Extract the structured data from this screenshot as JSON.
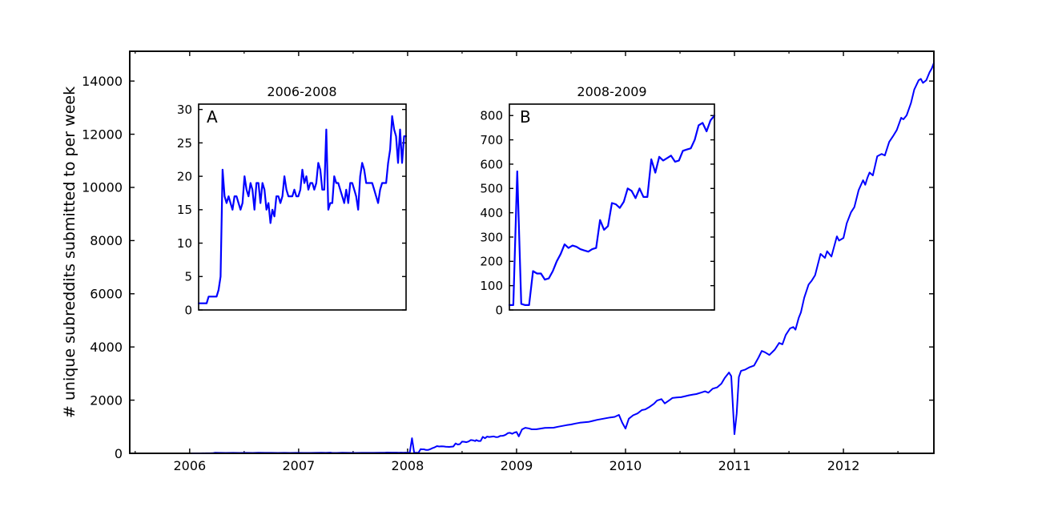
{
  "figure": {
    "background": "#ffffff",
    "axes_color": "#000000",
    "line_color": "#0000ff"
  },
  "chart_data": [
    {
      "id": "main",
      "type": "line",
      "title": "",
      "xlabel": "",
      "ylabel": "# unique subreddits submitted to per week",
      "xlim": [
        2005.45,
        2012.83
      ],
      "ylim": [
        0,
        15120
      ],
      "grid": false,
      "legend": null,
      "xticks": [
        {
          "v": 2006,
          "label": "2006"
        },
        {
          "v": 2007,
          "label": "2007"
        },
        {
          "v": 2008,
          "label": "2008"
        },
        {
          "v": 2009,
          "label": "2009"
        },
        {
          "v": 2010,
          "label": "2010"
        },
        {
          "v": 2011,
          "label": "2011"
        },
        {
          "v": 2012,
          "label": "2012"
        }
      ],
      "xminor": [
        2005.5,
        2006.5,
        2007.5,
        2008.5,
        2009.5,
        2010.5,
        2011.5,
        2012.5
      ],
      "yticks": [
        {
          "v": 0,
          "label": "0"
        },
        {
          "v": 2000,
          "label": "2000"
        },
        {
          "v": 4000,
          "label": "4000"
        },
        {
          "v": 6000,
          "label": "6000"
        },
        {
          "v": 8000,
          "label": "8000"
        },
        {
          "v": 10000,
          "label": "10000"
        },
        {
          "v": 12000,
          "label": "12000"
        },
        {
          "v": 14000,
          "label": "14000"
        }
      ],
      "series": [
        [
          2006.02,
          1
        ],
        [
          2006.1,
          1
        ],
        [
          2006.15,
          2
        ],
        [
          2006.19,
          2
        ],
        [
          2006.21,
          5
        ],
        [
          2006.23,
          21
        ],
        [
          2006.27,
          17
        ],
        [
          2006.33,
          16
        ],
        [
          2006.4,
          17
        ],
        [
          2006.46,
          15
        ],
        [
          2006.52,
          17
        ],
        [
          2006.58,
          16
        ],
        [
          2006.63,
          20
        ],
        [
          2006.69,
          18
        ],
        [
          2006.75,
          19
        ],
        [
          2006.81,
          15
        ],
        [
          2006.87,
          19
        ],
        [
          2006.92,
          16
        ],
        [
          2006.98,
          19
        ],
        [
          2007.04,
          15
        ],
        [
          2007.1,
          14
        ],
        [
          2007.15,
          17
        ],
        [
          2007.21,
          20
        ],
        [
          2007.25,
          19
        ],
        [
          2007.29,
          27
        ],
        [
          2007.31,
          15
        ],
        [
          2007.35,
          16
        ],
        [
          2007.4,
          20
        ],
        [
          2007.46,
          18
        ],
        [
          2007.52,
          16
        ],
        [
          2007.58,
          18
        ],
        [
          2007.63,
          19
        ],
        [
          2007.69,
          18
        ],
        [
          2007.75,
          22
        ],
        [
          2007.79,
          24
        ],
        [
          2007.81,
          29
        ],
        [
          2007.85,
          27
        ],
        [
          2007.88,
          28
        ],
        [
          2007.9,
          26
        ],
        [
          2007.92,
          24
        ],
        [
          2007.94,
          26
        ],
        [
          2007.96,
          22
        ],
        [
          2007.98,
          26
        ],
        [
          2008.0,
          20
        ],
        [
          2008.02,
          20
        ],
        [
          2008.04,
          570
        ],
        [
          2008.06,
          25
        ],
        [
          2008.08,
          20
        ],
        [
          2008.1,
          20
        ],
        [
          2008.12,
          160
        ],
        [
          2008.13,
          150
        ],
        [
          2008.15,
          150
        ],
        [
          2008.17,
          125
        ],
        [
          2008.19,
          130
        ],
        [
          2008.21,
          160
        ],
        [
          2008.23,
          200
        ],
        [
          2008.25,
          230
        ],
        [
          2008.27,
          270
        ],
        [
          2008.29,
          255
        ],
        [
          2008.31,
          265
        ],
        [
          2008.33,
          260
        ],
        [
          2008.35,
          250
        ],
        [
          2008.37,
          245
        ],
        [
          2008.38,
          240
        ],
        [
          2008.4,
          250
        ],
        [
          2008.42,
          255
        ],
        [
          2008.44,
          370
        ],
        [
          2008.46,
          330
        ],
        [
          2008.48,
          345
        ],
        [
          2008.5,
          440
        ],
        [
          2008.52,
          435
        ],
        [
          2008.54,
          420
        ],
        [
          2008.56,
          445
        ],
        [
          2008.58,
          500
        ],
        [
          2008.6,
          490
        ],
        [
          2008.62,
          460
        ],
        [
          2008.63,
          500
        ],
        [
          2008.65,
          465
        ],
        [
          2008.67,
          465
        ],
        [
          2008.69,
          620
        ],
        [
          2008.71,
          565
        ],
        [
          2008.73,
          630
        ],
        [
          2008.75,
          615
        ],
        [
          2008.77,
          625
        ],
        [
          2008.79,
          635
        ],
        [
          2008.81,
          610
        ],
        [
          2008.83,
          615
        ],
        [
          2008.85,
          655
        ],
        [
          2008.87,
          660
        ],
        [
          2008.88,
          665
        ],
        [
          2008.9,
          700
        ],
        [
          2008.92,
          760
        ],
        [
          2008.94,
          770
        ],
        [
          2008.96,
          735
        ],
        [
          2008.98,
          780
        ],
        [
          2009.0,
          800
        ],
        [
          2009.02,
          640
        ],
        [
          2009.05,
          900
        ],
        [
          2009.08,
          960
        ],
        [
          2009.11,
          940
        ],
        [
          2009.14,
          905
        ],
        [
          2009.18,
          905
        ],
        [
          2009.22,
          930
        ],
        [
          2009.26,
          955
        ],
        [
          2009.3,
          960
        ],
        [
          2009.34,
          965
        ],
        [
          2009.38,
          1000
        ],
        [
          2009.42,
          1030
        ],
        [
          2009.46,
          1060
        ],
        [
          2009.5,
          1085
        ],
        [
          2009.54,
          1120
        ],
        [
          2009.58,
          1150
        ],
        [
          2009.62,
          1165
        ],
        [
          2009.66,
          1180
        ],
        [
          2009.7,
          1220
        ],
        [
          2009.74,
          1260
        ],
        [
          2009.78,
          1290
        ],
        [
          2009.82,
          1320
        ],
        [
          2009.86,
          1350
        ],
        [
          2009.9,
          1370
        ],
        [
          2009.94,
          1445
        ],
        [
          2009.97,
          1150
        ],
        [
          2010.0,
          930
        ],
        [
          2010.03,
          1300
        ],
        [
          2010.07,
          1430
        ],
        [
          2010.11,
          1500
        ],
        [
          2010.15,
          1625
        ],
        [
          2010.18,
          1650
        ],
        [
          2010.22,
          1745
        ],
        [
          2010.26,
          1860
        ],
        [
          2010.29,
          1985
        ],
        [
          2010.33,
          2040
        ],
        [
          2010.36,
          1875
        ],
        [
          2010.4,
          1990
        ],
        [
          2010.43,
          2080
        ],
        [
          2010.47,
          2100
        ],
        [
          2010.51,
          2110
        ],
        [
          2010.55,
          2150
        ],
        [
          2010.58,
          2180
        ],
        [
          2010.62,
          2210
        ],
        [
          2010.65,
          2230
        ],
        [
          2010.69,
          2280
        ],
        [
          2010.73,
          2330
        ],
        [
          2010.76,
          2280
        ],
        [
          2010.8,
          2430
        ],
        [
          2010.84,
          2480
        ],
        [
          2010.88,
          2620
        ],
        [
          2010.91,
          2830
        ],
        [
          2010.95,
          3040
        ],
        [
          2010.97,
          2900
        ],
        [
          2011.0,
          720
        ],
        [
          2011.02,
          1500
        ],
        [
          2011.04,
          2870
        ],
        [
          2011.06,
          3100
        ],
        [
          2011.1,
          3150
        ],
        [
          2011.14,
          3240
        ],
        [
          2011.18,
          3300
        ],
        [
          2011.22,
          3600
        ],
        [
          2011.25,
          3850
        ],
        [
          2011.28,
          3800
        ],
        [
          2011.32,
          3700
        ],
        [
          2011.37,
          3900
        ],
        [
          2011.41,
          4150
        ],
        [
          2011.44,
          4100
        ],
        [
          2011.47,
          4450
        ],
        [
          2011.51,
          4700
        ],
        [
          2011.54,
          4750
        ],
        [
          2011.56,
          4650
        ],
        [
          2011.59,
          5100
        ],
        [
          2011.61,
          5300
        ],
        [
          2011.64,
          5850
        ],
        [
          2011.68,
          6350
        ],
        [
          2011.71,
          6500
        ],
        [
          2011.74,
          6700
        ],
        [
          2011.79,
          7500
        ],
        [
          2011.83,
          7350
        ],
        [
          2011.85,
          7600
        ],
        [
          2011.89,
          7400
        ],
        [
          2011.94,
          8160
        ],
        [
          2011.96,
          8000
        ],
        [
          2012.0,
          8100
        ],
        [
          2012.03,
          8650
        ],
        [
          2012.07,
          9070
        ],
        [
          2012.1,
          9260
        ],
        [
          2012.14,
          9900
        ],
        [
          2012.18,
          10270
        ],
        [
          2012.2,
          10100
        ],
        [
          2012.22,
          10360
        ],
        [
          2012.24,
          10560
        ],
        [
          2012.27,
          10450
        ],
        [
          2012.31,
          11170
        ],
        [
          2012.35,
          11260
        ],
        [
          2012.38,
          11200
        ],
        [
          2012.42,
          11710
        ],
        [
          2012.46,
          11960
        ],
        [
          2012.49,
          12160
        ],
        [
          2012.53,
          12620
        ],
        [
          2012.55,
          12560
        ],
        [
          2012.58,
          12710
        ],
        [
          2012.62,
          13170
        ],
        [
          2012.65,
          13680
        ],
        [
          2012.69,
          14030
        ],
        [
          2012.71,
          14080
        ],
        [
          2012.73,
          13930
        ],
        [
          2012.76,
          14030
        ],
        [
          2012.79,
          14330
        ],
        [
          2012.81,
          14470
        ],
        [
          2012.83,
          14680
        ]
      ]
    },
    {
      "id": "inset_a",
      "type": "line",
      "title": "2006-2008",
      "panel_label": "A",
      "xlim": [
        0,
        104
      ],
      "ylim": [
        0,
        30.8
      ],
      "x_unit": "week index (2006.0 to 2008.0)",
      "yticks": [
        {
          "v": 0,
          "label": "0"
        },
        {
          "v": 5,
          "label": "5"
        },
        {
          "v": 10,
          "label": "10"
        },
        {
          "v": 15,
          "label": "15"
        },
        {
          "v": 20,
          "label": "20"
        },
        {
          "v": 25,
          "label": "25"
        },
        {
          "v": 30,
          "label": "30"
        }
      ],
      "values": [
        1,
        1,
        1,
        1,
        1,
        2,
        2,
        2,
        2,
        2,
        3,
        5,
        21,
        17,
        16,
        17,
        16,
        15,
        17,
        17,
        16,
        15,
        16,
        20,
        18,
        17,
        19,
        18,
        15,
        19,
        19,
        16,
        19,
        18,
        15,
        16,
        13,
        15,
        14,
        17,
        17,
        16,
        17,
        20,
        18,
        17,
        17,
        17,
        18,
        17,
        17,
        18,
        21,
        19,
        20,
        18,
        19,
        19,
        18,
        19,
        22,
        21,
        18,
        18,
        27,
        15,
        16,
        16,
        20,
        19,
        19,
        18,
        17,
        16,
        18,
        16,
        19,
        19,
        18,
        17,
        15,
        20,
        22,
        21,
        19,
        19,
        19,
        19,
        18,
        17,
        16,
        18,
        19,
        19,
        19,
        22,
        24,
        29,
        27,
        26,
        22,
        27,
        22,
        26,
        26
      ]
    },
    {
      "id": "inset_b",
      "type": "line",
      "title": "2008-2009",
      "panel_label": "B",
      "xlim": [
        0,
        52
      ],
      "ylim": [
        0,
        847
      ],
      "x_unit": "week index (2008.0 to 2009.0)",
      "yticks": [
        {
          "v": 0,
          "label": "0"
        },
        {
          "v": 100,
          "label": "100"
        },
        {
          "v": 200,
          "label": "200"
        },
        {
          "v": 300,
          "label": "300"
        },
        {
          "v": 400,
          "label": "400"
        },
        {
          "v": 500,
          "label": "500"
        },
        {
          "v": 600,
          "label": "600"
        },
        {
          "v": 700,
          "label": "700"
        },
        {
          "v": 800,
          "label": "800"
        }
      ],
      "values": [
        20,
        20,
        570,
        25,
        20,
        20,
        160,
        150,
        150,
        125,
        130,
        160,
        200,
        230,
        270,
        255,
        265,
        260,
        250,
        245,
        240,
        250,
        255,
        370,
        330,
        345,
        440,
        435,
        420,
        445,
        500,
        490,
        460,
        500,
        465,
        465,
        620,
        565,
        630,
        615,
        625,
        635,
        610,
        615,
        655,
        660,
        665,
        700,
        760,
        770,
        735,
        780,
        800
      ]
    }
  ]
}
